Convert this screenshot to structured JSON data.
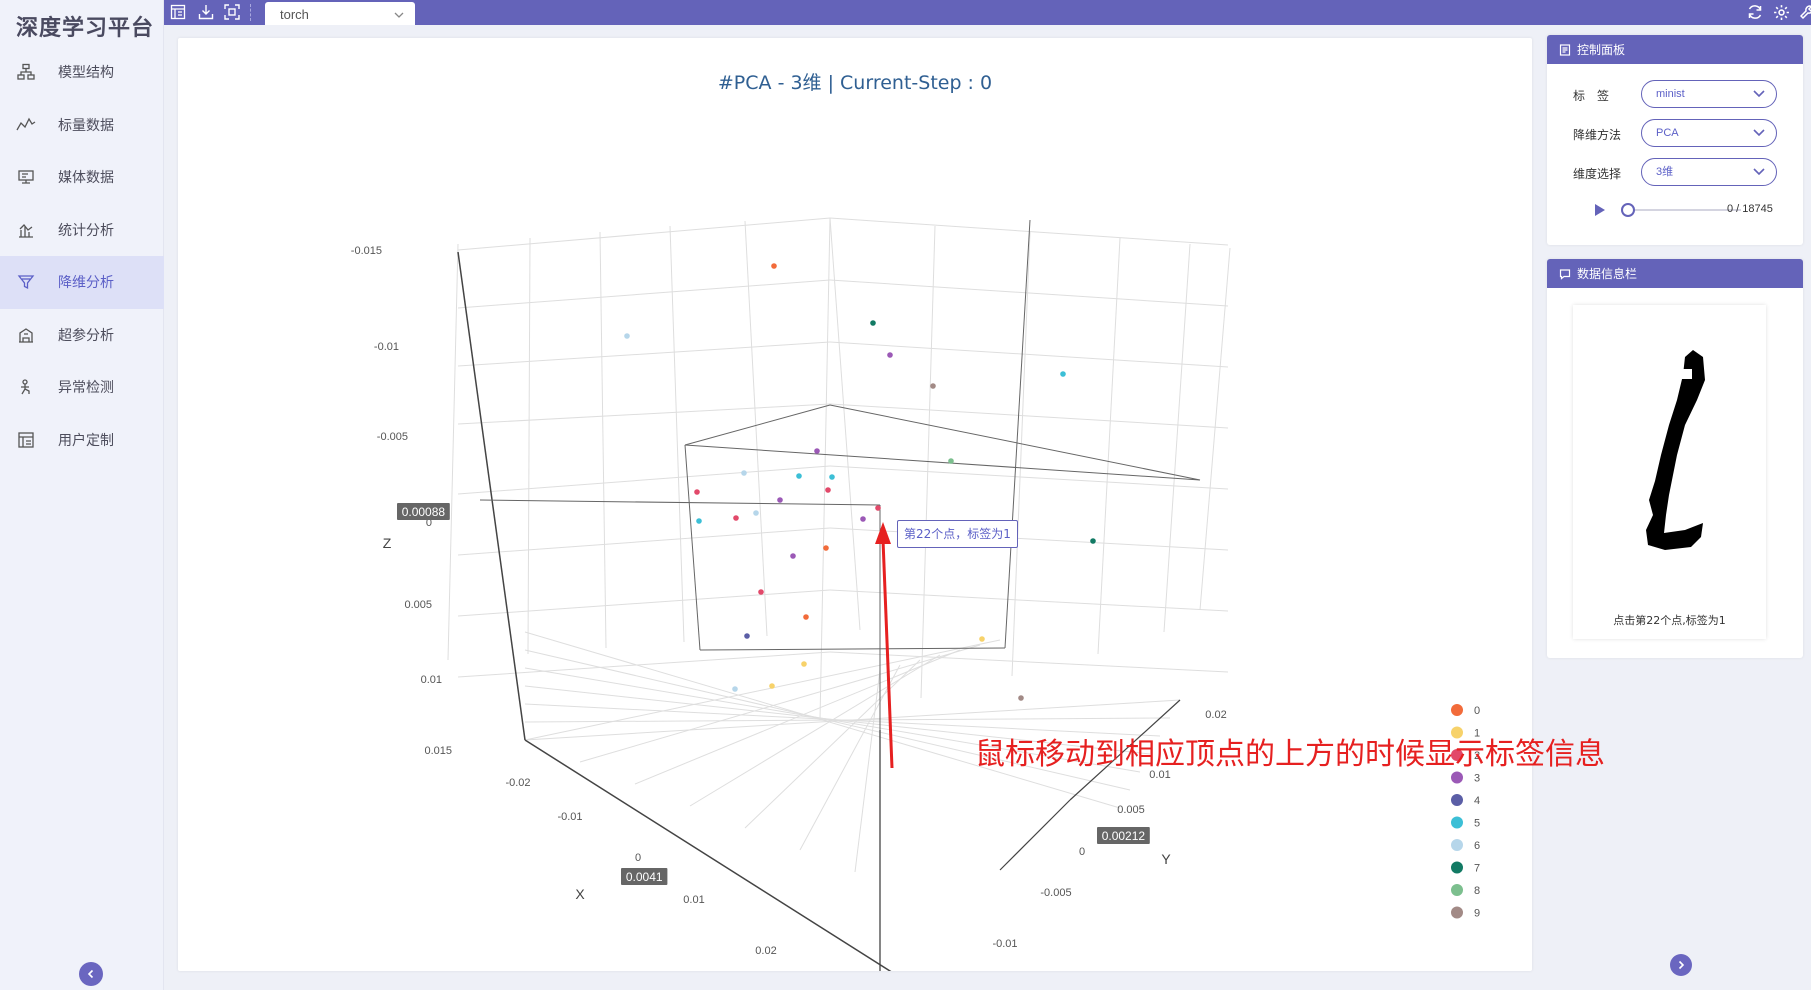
{
  "app": {
    "title": "深度学习平台"
  },
  "sidebar": {
    "items": [
      {
        "label": "模型结构",
        "icon": "network-icon",
        "active": false
      },
      {
        "label": "标量数据",
        "icon": "line-chart-icon",
        "active": false
      },
      {
        "label": "媒体数据",
        "icon": "monitor-icon",
        "active": false
      },
      {
        "label": "统计分析",
        "icon": "bar-chart-icon",
        "active": false
      },
      {
        "label": "降维分析",
        "icon": "funnel-icon",
        "active": true
      },
      {
        "label": "超参分析",
        "icon": "building-icon",
        "active": false
      },
      {
        "label": "异常检测",
        "icon": "person-run-icon",
        "active": false
      },
      {
        "label": "用户定制",
        "icon": "template-icon",
        "active": false
      }
    ]
  },
  "topbar": {
    "run_select": "torch"
  },
  "chart": {
    "title": "#PCA - 3维 | Current-Step : 0",
    "tooltip": "第22个点，标签为1",
    "axis_readouts": {
      "z": "0.00088",
      "x": "0.0041",
      "y": "0.00212"
    },
    "legend": [
      "0",
      "1",
      "2",
      "3",
      "4",
      "5",
      "6",
      "7",
      "8",
      "9"
    ]
  },
  "chart_data": {
    "type": "scatter",
    "title": "#PCA - 3维 | Current-Step : 0",
    "xlabel": "X",
    "ylabel": "Y",
    "zlabel": "Z",
    "x_ticks": [
      "-0.02",
      "-0.01",
      "0",
      "0.01",
      "0.02"
    ],
    "y_ticks": [
      "-0.01",
      "-0.005",
      "0",
      "0.005",
      "0.01",
      "0.02"
    ],
    "z_ticks": [
      "-0.015",
      "-0.01",
      "-0.005",
      "0",
      "0.005",
      "0.01",
      "0.015"
    ],
    "series": [
      {
        "name": "0",
        "color": "#f26b3a"
      },
      {
        "name": "1",
        "color": "#f7d26a"
      },
      {
        "name": "2",
        "color": "#e2496a"
      },
      {
        "name": "3",
        "color": "#9b59b6"
      },
      {
        "name": "4",
        "color": "#5b5ea6"
      },
      {
        "name": "5",
        "color": "#3cbfd6"
      },
      {
        "name": "6",
        "color": "#b6d6ea"
      },
      {
        "name": "7",
        "color": "#127a64"
      },
      {
        "name": "8",
        "color": "#7cbf8e"
      },
      {
        "name": "9",
        "color": "#a28a86"
      }
    ],
    "legend_position": "right",
    "grid": true
  },
  "control_panel": {
    "title": "控制面板",
    "label_label": "标　签",
    "label_value": "minist",
    "method_label": "降维方法",
    "method_value": "PCA",
    "dim_label": "维度选择",
    "dim_value": "3维",
    "step": "0 / 18745"
  },
  "info_panel": {
    "title": "数据信息栏",
    "caption": "点击第22个点,标签为1"
  },
  "annotation": "鼠标移动到相应顶点的上方的时候显示标签信息",
  "colors": {
    "accent": "#6463b9",
    "active_bg": "#dde0f7",
    "annotation": "#e62020"
  }
}
